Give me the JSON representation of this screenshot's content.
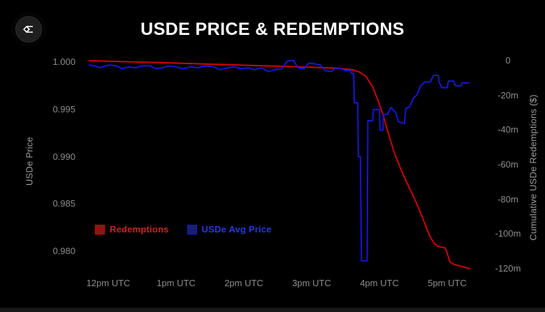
{
  "chart_data": {
    "type": "line",
    "title": "USDE PRICE & REDEMPTIONS",
    "ylabel_left": "USDe Price",
    "ylabel_right": "Cumulative USDe Redemptions ($)",
    "grid": false,
    "legend_position": "bottom-left-inside",
    "x_range_hours_utc": [
      11.7,
      17.35
    ],
    "price_range": [
      0.979,
      1.0005
    ],
    "redemption_range_millions": [
      -120,
      0
    ],
    "x_ticks": [
      {
        "t": 12,
        "label": "12pm UTC"
      },
      {
        "t": 13,
        "label": "1pm UTC"
      },
      {
        "t": 14,
        "label": "2pm UTC"
      },
      {
        "t": 15,
        "label": "3pm UTC"
      },
      {
        "t": 16,
        "label": "4pm UTC"
      },
      {
        "t": 17,
        "label": "5pm UTC"
      }
    ],
    "price_ticks": [
      {
        "v": 1.0,
        "label": "1.000"
      },
      {
        "v": 0.995,
        "label": "0.995"
      },
      {
        "v": 0.99,
        "label": "0.990"
      },
      {
        "v": 0.985,
        "label": "0.985"
      },
      {
        "v": 0.98,
        "label": "0.980"
      }
    ],
    "redemption_ticks": [
      {
        "v": 0,
        "label": "0"
      },
      {
        "v": -20,
        "label": "-20m"
      },
      {
        "v": -40,
        "label": "-40m"
      },
      {
        "v": -60,
        "label": "-60m"
      },
      {
        "v": -80,
        "label": "-80m"
      },
      {
        "v": -100,
        "label": "-100m"
      },
      {
        "v": -120,
        "label": "-120m"
      }
    ],
    "series": [
      {
        "name": "Redemptions",
        "axis": "redemptions",
        "units": "millions USD (cumulative)",
        "color": "#d40000",
        "swatch_color": "#8a1616",
        "text_color": "#cc2222",
        "points": [
          [
            11.72,
            0
          ],
          [
            12.2,
            -0.5
          ],
          [
            12.7,
            -1.0
          ],
          [
            13.2,
            -1.6
          ],
          [
            13.7,
            -2.2
          ],
          [
            14.2,
            -2.8
          ],
          [
            14.7,
            -3.4
          ],
          [
            15.1,
            -3.9
          ],
          [
            15.4,
            -4.4
          ],
          [
            15.6,
            -5.2
          ],
          [
            15.7,
            -6.5
          ],
          [
            15.8,
            -9
          ],
          [
            15.9,
            -15
          ],
          [
            15.98,
            -23
          ],
          [
            16.06,
            -32
          ],
          [
            16.14,
            -43
          ],
          [
            16.22,
            -53
          ],
          [
            16.31,
            -62
          ],
          [
            16.4,
            -70
          ],
          [
            16.5,
            -78
          ],
          [
            16.6,
            -87
          ],
          [
            16.68,
            -95
          ],
          [
            16.74,
            -101
          ],
          [
            16.8,
            -105
          ],
          [
            16.86,
            -107
          ],
          [
            16.97,
            -108
          ],
          [
            17.0,
            -111
          ],
          [
            17.04,
            -116
          ],
          [
            17.1,
            -117.5
          ],
          [
            17.2,
            -118.5
          ],
          [
            17.33,
            -120
          ]
        ]
      },
      {
        "name": "USDe Avg Price",
        "axis": "price",
        "units": "USD",
        "color": "#1515dd",
        "swatch_color": "#181f6e",
        "text_color": "#2438e8",
        "points": [
          [
            11.72,
            0.9997
          ],
          [
            11.8,
            0.9996
          ],
          [
            11.88,
            0.9994
          ],
          [
            11.95,
            0.9996
          ],
          [
            12.03,
            0.9997
          ],
          [
            12.12,
            0.9996
          ],
          [
            12.2,
            0.9993
          ],
          [
            12.3,
            0.9995
          ],
          [
            12.4,
            0.9994
          ],
          [
            12.5,
            0.9996
          ],
          [
            12.62,
            0.9996
          ],
          [
            12.7,
            0.9993
          ],
          [
            12.8,
            0.9994
          ],
          [
            12.9,
            0.9996
          ],
          [
            13.0,
            0.9995
          ],
          [
            13.1,
            0.9993
          ],
          [
            13.22,
            0.9995
          ],
          [
            13.32,
            0.9994
          ],
          [
            13.44,
            0.9996
          ],
          [
            13.55,
            0.9995
          ],
          [
            13.65,
            0.9992
          ],
          [
            13.76,
            0.9994
          ],
          [
            13.86,
            0.9995
          ],
          [
            13.96,
            0.9993
          ],
          [
            14.06,
            0.9994
          ],
          [
            14.16,
            0.9992
          ],
          [
            14.26,
            0.9994
          ],
          [
            14.36,
            0.999
          ],
          [
            14.46,
            0.9992
          ],
          [
            14.56,
            0.9993
          ],
          [
            14.64,
            1.0001
          ],
          [
            14.73,
            1.0002
          ],
          [
            14.8,
            0.9994
          ],
          [
            14.88,
            0.9993
          ],
          [
            14.96,
            0.9999
          ],
          [
            15.06,
            0.9998
          ],
          [
            15.13,
            0.9997
          ],
          [
            15.2,
            0.9991
          ],
          [
            15.29,
            0.999
          ],
          [
            15.36,
            0.9994
          ],
          [
            15.44,
            0.9993
          ],
          [
            15.5,
            0.9991
          ],
          [
            15.57,
            0.9991
          ],
          [
            15.59,
            0.9988
          ],
          [
            15.62,
            0.9988
          ],
          [
            15.63,
            0.9957
          ],
          [
            15.68,
            0.9957
          ],
          [
            15.69,
            0.99
          ],
          [
            15.72,
            0.99
          ],
          [
            15.735,
            0.979
          ],
          [
            15.82,
            0.979
          ],
          [
            15.83,
            0.9938
          ],
          [
            15.9,
            0.9938
          ],
          [
            15.91,
            0.995
          ],
          [
            16.0,
            0.995
          ],
          [
            16.01,
            0.9928
          ],
          [
            16.05,
            0.9928
          ],
          [
            16.06,
            0.9944
          ],
          [
            16.12,
            0.9945
          ],
          [
            16.17,
            0.9952
          ],
          [
            16.24,
            0.9947
          ],
          [
            16.28,
            0.9937
          ],
          [
            16.37,
            0.9935
          ],
          [
            16.39,
            0.9951
          ],
          [
            16.45,
            0.9953
          ],
          [
            16.5,
            0.9962
          ],
          [
            16.55,
            0.9965
          ],
          [
            16.61,
            0.9975
          ],
          [
            16.67,
            0.9979
          ],
          [
            16.75,
            0.9979
          ],
          [
            16.8,
            0.9986
          ],
          [
            16.87,
            0.9986
          ],
          [
            16.88,
            0.9979
          ],
          [
            16.92,
            0.9973
          ],
          [
            17.0,
            0.9973
          ],
          [
            17.02,
            0.998
          ],
          [
            17.1,
            0.998
          ],
          [
            17.12,
            0.9975
          ],
          [
            17.2,
            0.9975
          ],
          [
            17.22,
            0.9978
          ],
          [
            17.32,
            0.9978
          ]
        ]
      }
    ]
  }
}
